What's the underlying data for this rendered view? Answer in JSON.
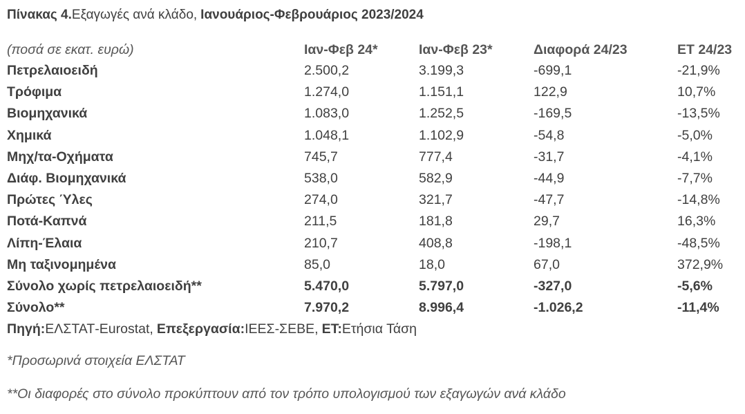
{
  "title": {
    "label": "Πίνακας 4.",
    "text": "Εξαγωγές ανά κλάδο,",
    "period": "Ιανουάριος-Φεβρουάριος 2023/2024"
  },
  "table": {
    "header": [
      "(ποσά σε εκατ. ευρώ)",
      "Ιαν-Φεβ 24*",
      "Ιαν-Φεβ 23*",
      "Διαφορά 24/23",
      "ΕΤ 24/23"
    ],
    "rows": [
      [
        "Πετρελαιοειδή",
        "2.500,2",
        "3.199,3",
        "-699,1",
        "-21,9%"
      ],
      [
        "Τρόφιμα",
        "1.274,0",
        "1.151,1",
        "122,9",
        "10,7%"
      ],
      [
        "Βιομηχανικά",
        "1.083,0",
        "1.252,5",
        "-169,5",
        "-13,5%"
      ],
      [
        "Χημικά",
        "1.048,1",
        "1.102,9",
        "-54,8",
        "-5,0%"
      ],
      [
        "Μηχ/τα-Οχήματα",
        "745,7",
        "777,4",
        "-31,7",
        "-4,1%"
      ],
      [
        "Διάφ. Βιομηχανικά",
        "538,0",
        "582,9",
        "-44,9",
        "-7,7%"
      ],
      [
        "Πρώτες Ύλες",
        "274,0",
        "321,7",
        "-47,7",
        "-14,8%"
      ],
      [
        "Ποτά-Καπνά",
        "211,5",
        "181,8",
        "29,7",
        "16,3%"
      ],
      [
        "Λίπη-Έλαια",
        "210,7",
        "408,8",
        "-198,1",
        "-48,5%"
      ],
      [
        "Μη ταξινομημένα",
        "85,0",
        "18,0",
        "67,0",
        "372,9%"
      ]
    ],
    "totals": [
      [
        "Σύνολο χωρίς πετρελαιοειδή**",
        "5.470,0",
        "5.797,0",
        "-327,0",
        "-5,6%"
      ],
      [
        "Σύνολο**",
        "7.970,2",
        "8.996,4",
        "-1.026,2",
        "-11,4%"
      ]
    ]
  },
  "source": {
    "label1": "Πηγή:",
    "text1": "ΕΛΣΤΑΤ-Eurostat,",
    "label2": "Επεξεργασία:",
    "text2": "ΙΕΕΣ-ΣΕΒΕ,",
    "label3": "ΕΤ:",
    "text3": "Ετήσια Τάση"
  },
  "notes": [
    "*Προσωρινά στοιχεία ΕΛΣΤΑΤ",
    "**Οι διαφορές στο σύνολο προκύπτουν από τον τρόπο υπολογισμού των εξαγωγών ανά κλάδο"
  ]
}
